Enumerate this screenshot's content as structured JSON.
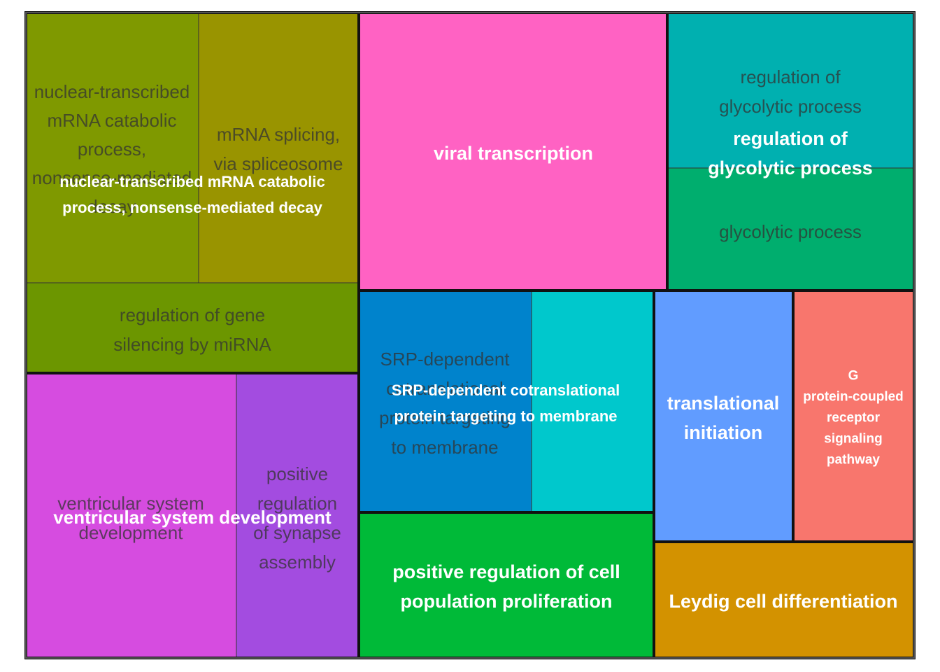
{
  "chart_data": {
    "type": "treemap",
    "title": "",
    "groups": [
      {
        "name": "nuclear-transcribed mRNA catabolic process, nonsense-mediated decay",
        "lines": [
          "nuclear-transcribed mRNA catabolic",
          "process, nonsense-mediated decay"
        ],
        "terms": [
          {
            "name": "nuclear-transcribed mRNA catabolic process, nonsense-mediated decay",
            "lines": [
              "nuclear-transcribed",
              "mRNA catabolic",
              "process,",
              "nonsense-mediated",
              "decay"
            ],
            "color": "#7F9900",
            "value": 9.6
          },
          {
            "name": "mRNA splicing, via spliceosome",
            "lines": [
              "mRNA splicing,",
              "via spliceosome"
            ],
            "color": "#999400",
            "value": 8.5
          },
          {
            "name": "regulation of gene silencing by miRNA",
            "lines": [
              "regulation of gene",
              "silencing by miRNA"
            ],
            "color": "#6C9600",
            "value": 6.0
          }
        ]
      },
      {
        "name": "viral transcription",
        "lines": [
          "viral transcription"
        ],
        "terms": [
          {
            "name": "viral transcription",
            "lines": [
              "viral transcription"
            ],
            "color": "#FF62C3",
            "value": 17.2
          }
        ]
      },
      {
        "name": "regulation of glycolytic process",
        "lines": [
          "regulation of",
          "glycolytic process"
        ],
        "terms": [
          {
            "name": "regulation of glycolytic process",
            "lines": [
              "regulation of",
              "glycolytic process"
            ],
            "color": "#00B0B0",
            "value": 7.7
          },
          {
            "name": "glycolytic process",
            "lines": [
              "glycolytic process"
            ],
            "color": "#00AE6E",
            "value": 6.5
          }
        ]
      },
      {
        "name": "ventricular system development",
        "lines": [
          "ventricular system development"
        ],
        "terms": [
          {
            "name": "ventricular system development",
            "lines": [
              "ventricular system",
              "development"
            ],
            "color": "#D64CE0",
            "value": 12.0
          },
          {
            "name": "positive regulation of synapse assembly",
            "lines": [
              "positive",
              "regulation",
              "of synapse",
              "assembly"
            ],
            "color": "#A34CE0",
            "value": 7.0
          }
        ]
      },
      {
        "name": "SRP-dependent cotranslational protein targeting to membrane",
        "lines": [
          "SRP-dependent cotranslational",
          "protein targeting to membrane"
        ],
        "terms": [
          {
            "name": "SRP-dependent cotranslational protein targeting to membrane",
            "lines": [
              "SRP-dependent",
              "cotranslational",
              "protein targeting",
              "to membrane"
            ],
            "color": "#0083CC",
            "value": 8.9
          },
          {
            "name": "",
            "lines": [],
            "color": "#00C8CC",
            "value": 6.3
          }
        ]
      },
      {
        "name": "translational initiation",
        "lines": [
          "translational",
          "initiation"
        ],
        "terms": [
          {
            "name": "translational initiation",
            "lines": [
              "translational",
              "initiation"
            ],
            "color": "#619CFF",
            "value": 6.6
          }
        ]
      },
      {
        "name": "G protein-coupled receptor signaling pathway",
        "lines": [
          "G",
          "protein-coupled",
          "receptor",
          "signaling",
          "pathway"
        ],
        "terms": [
          {
            "name": "G protein-coupled receptor signaling pathway",
            "lines": [
              "G",
              "protein-coupled",
              "receptor",
              "signaling",
              "pathway"
            ],
            "color": "#F8766D",
            "value": 6.1
          }
        ]
      },
      {
        "name": "positive regulation of cell population proliferation",
        "lines": [
          "positive regulation of cell",
          "population proliferation"
        ],
        "terms": [
          {
            "name": "positive regulation of cell population proliferation",
            "lines": [
              "positive regulation of cell",
              "population proliferation"
            ],
            "color": "#00BA38",
            "value": 9.1
          }
        ]
      },
      {
        "name": "Leydig cell differentiation",
        "lines": [
          "Leydig cell differentiation"
        ],
        "terms": [
          {
            "name": "Leydig cell differentiation",
            "lines": [
              "Leydig cell differentiation"
            ],
            "color": "#D39200",
            "value": 6.4
          }
        ]
      }
    ]
  }
}
